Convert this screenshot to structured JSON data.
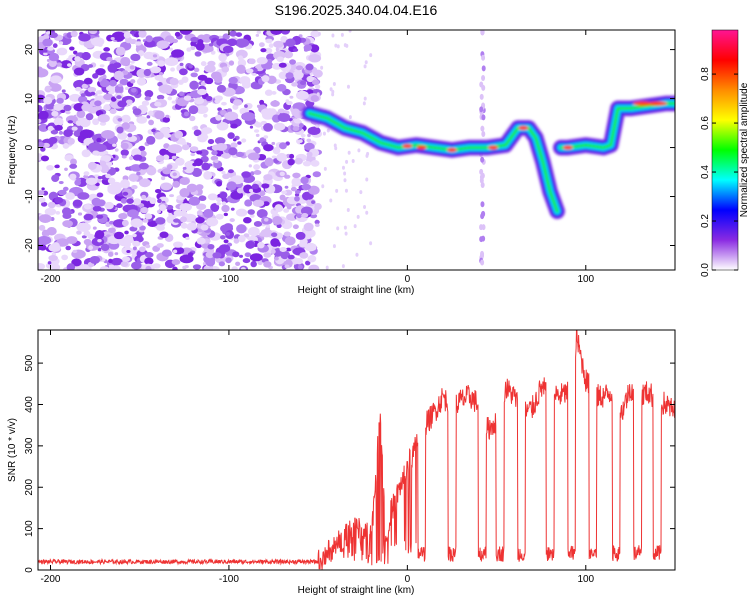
{
  "title": "S196.2025.340.04.04.E16",
  "chart_data": [
    {
      "type": "heatmap",
      "xlabel": "Height of straight line (km)",
      "ylabel": "Frequency (Hz)",
      "xlim": [
        -207,
        150
      ],
      "ylim": [
        -25,
        24
      ],
      "xticks": [
        -200,
        -100,
        0,
        100
      ],
      "yticks": [
        -20,
        -10,
        0,
        10,
        20
      ],
      "noise_region": [
        -207,
        -50
      ],
      "ridge": {
        "x": [
          -55,
          -45,
          -35,
          -25,
          -15,
          -5,
          5,
          15,
          25,
          35,
          45,
          55,
          62,
          68,
          72,
          76,
          80,
          84,
          86,
          90,
          100,
          110,
          114,
          118,
          125,
          135,
          145,
          150
        ],
        "y": [
          7,
          6,
          4,
          3,
          1,
          0,
          0.5,
          0,
          -0.5,
          0,
          0,
          0.5,
          4,
          4,
          2,
          -3,
          -9,
          -13,
          0,
          0,
          0.5,
          0,
          0.5,
          8,
          8,
          8.5,
          9,
          9
        ]
      },
      "colorbar": {
        "label": "Normalized spectral amplitude",
        "ticks": [
          "0.0",
          "0.2",
          "0.4",
          "0.6",
          "0.8"
        ],
        "colors": [
          "#ffffff",
          "#8a2be2",
          "#0000ff",
          "#00ffff",
          "#00ff00",
          "#ffff00",
          "#ff8c00",
          "#ff0000",
          "#ff1493"
        ]
      }
    },
    {
      "type": "line",
      "xlabel": "Height of straight line (km)",
      "ylabel": "SNR (10 * v/v)",
      "xlim": [
        -207,
        150
      ],
      "ylim": [
        0,
        580
      ],
      "xticks": [
        -200,
        -100,
        0,
        100
      ],
      "yticks": [
        0,
        100,
        200,
        300,
        400,
        500
      ],
      "series": [
        {
          "name": "SNR",
          "color": "#ee3333",
          "x": [
            -207,
            -50,
            -40,
            -30,
            -20,
            -15,
            -12,
            -10,
            -5,
            0,
            5,
            10,
            15,
            20,
            25,
            30,
            35,
            40,
            45,
            50,
            55,
            60,
            65,
            70,
            75,
            80,
            85,
            90,
            95,
            100,
            105,
            110,
            115,
            120,
            125,
            130,
            135,
            140,
            145,
            150
          ],
          "y": [
            20,
            20,
            60,
            100,
            90,
            390,
            60,
            130,
            190,
            250,
            300,
            350,
            380,
            420,
            390,
            410,
            420,
            400,
            340,
            360,
            440,
            420,
            380,
            390,
            440,
            430,
            420,
            430,
            560,
            460,
            420,
            420,
            430,
            380,
            440,
            420,
            430,
            410,
            400,
            380
          ]
        }
      ],
      "dips": [
        8,
        25,
        42,
        52,
        64,
        80,
        92,
        104,
        117,
        129,
        140
      ]
    }
  ]
}
